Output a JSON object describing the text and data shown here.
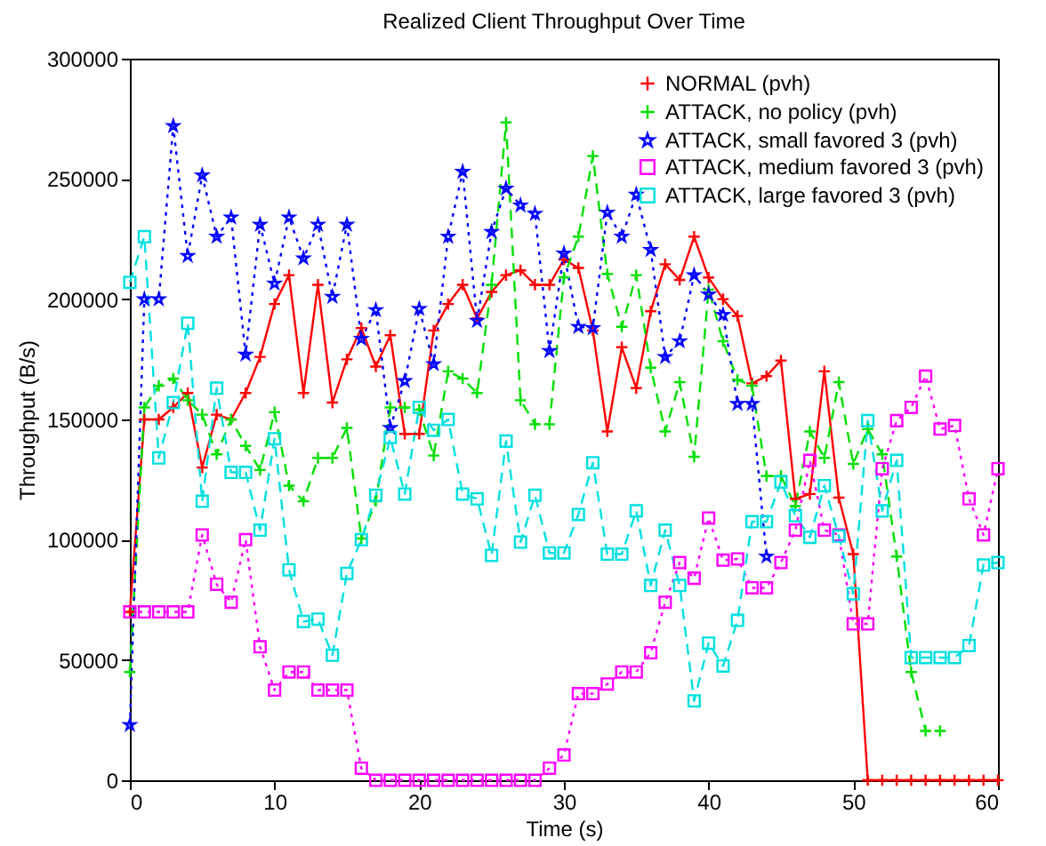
{
  "chart_data": {
    "type": "line",
    "title": "Realized Client Throughput Over Time",
    "xlabel": "Time (s)",
    "ylabel": "Throughput (B/s)",
    "x": [
      0,
      1,
      2,
      3,
      4,
      5,
      6,
      7,
      8,
      9,
      10,
      11,
      12,
      13,
      14,
      15,
      16,
      17,
      18,
      19,
      20,
      21,
      22,
      23,
      24,
      25,
      26,
      27,
      28,
      29,
      30,
      31,
      32,
      33,
      34,
      35,
      36,
      37,
      38,
      39,
      40,
      41,
      42,
      43,
      44,
      45,
      46,
      47,
      48,
      49,
      50,
      51,
      52,
      53,
      54,
      55,
      56,
      57,
      58,
      59,
      60
    ],
    "xlim": [
      0,
      60
    ],
    "xticks": [
      0,
      10,
      20,
      30,
      40,
      50,
      60
    ],
    "ylim": [
      0,
      300000
    ],
    "yticks": [
      0,
      50000,
      100000,
      150000,
      200000,
      250000,
      300000
    ],
    "legend": "top right",
    "grid": false,
    "series": [
      {
        "name": "NORMAL (pvh)",
        "color": "#ff0000",
        "marker": "cross",
        "line_style": "solid",
        "values": [
          70000,
          150000,
          150000,
          155000,
          161000,
          130000,
          152000,
          150000,
          161000,
          176000,
          198000,
          210000,
          161000,
          206000,
          157000,
          175000,
          188000,
          172000,
          185000,
          144000,
          144000,
          187000,
          198000,
          206000,
          192000,
          203000,
          210000,
          212000,
          206000,
          206000,
          216500,
          213000,
          187000,
          145000,
          180000,
          163000,
          195000,
          214500,
          208000,
          226000,
          209000,
          200000,
          193000,
          165000,
          168000,
          174500,
          117000,
          119000,
          170000,
          117500,
          94000,
          0,
          0,
          0,
          0,
          0,
          0,
          0,
          0,
          0,
          0
        ]
      },
      {
        "name": "ATTACK, no policy (pvh)",
        "color": "#00e000",
        "marker": "cross",
        "line_style": "dashed",
        "values": [
          45000,
          155000,
          164000,
          167000,
          158000,
          152000,
          135500,
          150000,
          139000,
          129000,
          153000,
          122500,
          116000,
          134000,
          134000,
          146500,
          100500,
          116000,
          155000,
          155000,
          154000,
          135000,
          170000,
          167000,
          161000,
          206000,
          273500,
          158000,
          148000,
          148000,
          209000,
          226000,
          259500,
          210500,
          188500,
          210000,
          171500,
          145000,
          165500,
          134500,
          204000,
          182500,
          166500,
          164000,
          126500,
          126500,
          114000,
          145000,
          134000,
          165500,
          131500,
          146000,
          135500,
          93000,
          45000,
          20500,
          20500,
          null,
          null,
          null,
          null
        ]
      },
      {
        "name": "ATTACK, small favored 3 (pvh)",
        "color": "#0000ff",
        "marker": "star",
        "line_style": "dotted",
        "values": [
          23000,
          200000,
          200000,
          272000,
          218000,
          251500,
          226000,
          234000,
          177000,
          231000,
          206500,
          234000,
          217000,
          231000,
          201000,
          231000,
          183500,
          195500,
          146500,
          166000,
          196000,
          173000,
          226000,
          253000,
          191000,
          228000,
          246000,
          239000,
          235500,
          178500,
          219000,
          188500,
          188000,
          236000,
          226000,
          243500,
          220500,
          176000,
          182500,
          210000,
          202000,
          193500,
          156500,
          156500,
          93000,
          null,
          null,
          null,
          null,
          null,
          null,
          null,
          null,
          null,
          null,
          null,
          null,
          null,
          null,
          null,
          null
        ]
      },
      {
        "name": "ATTACK, medium favored 3 (pvh)",
        "color": "#ff00ff",
        "marker": "square",
        "line_style": "dotted",
        "values": [
          70000,
          70000,
          70000,
          70000,
          70000,
          102000,
          81500,
          74000,
          100000,
          55500,
          37500,
          45000,
          45000,
          37500,
          37500,
          37500,
          5000,
          0,
          0,
          0,
          0,
          0,
          0,
          0,
          0,
          0,
          0,
          0,
          0,
          5000,
          10500,
          36000,
          36000,
          40000,
          45000,
          45000,
          53000,
          74000,
          90500,
          84000,
          109000,
          91500,
          92000,
          80000,
          80000,
          90500,
          104000,
          133000,
          104000,
          102000,
          65000,
          65000,
          129500,
          149500,
          155000,
          168000,
          146000,
          147500,
          117000,
          102000,
          129500
        ]
      },
      {
        "name": "ATTACK, large favored 3 (pvh)",
        "color": "#00e0e0",
        "marker": "square",
        "line_style": "dashed",
        "values": [
          207000,
          226000,
          134000,
          157000,
          190000,
          116000,
          163000,
          128000,
          128000,
          104000,
          142000,
          87500,
          66000,
          67000,
          52000,
          86000,
          100000,
          118500,
          142500,
          119000,
          155000,
          145500,
          150000,
          119000,
          117000,
          93500,
          141000,
          99000,
          118500,
          94500,
          94500,
          110500,
          132000,
          94000,
          94000,
          112000,
          81000,
          104000,
          81000,
          33000,
          57000,
          47500,
          66500,
          107500,
          107500,
          124000,
          110000,
          101000,
          122500,
          101500,
          77500,
          149500,
          112000,
          133000,
          51000,
          51000,
          51000,
          51000,
          56000,
          89500,
          90500
        ]
      }
    ]
  }
}
